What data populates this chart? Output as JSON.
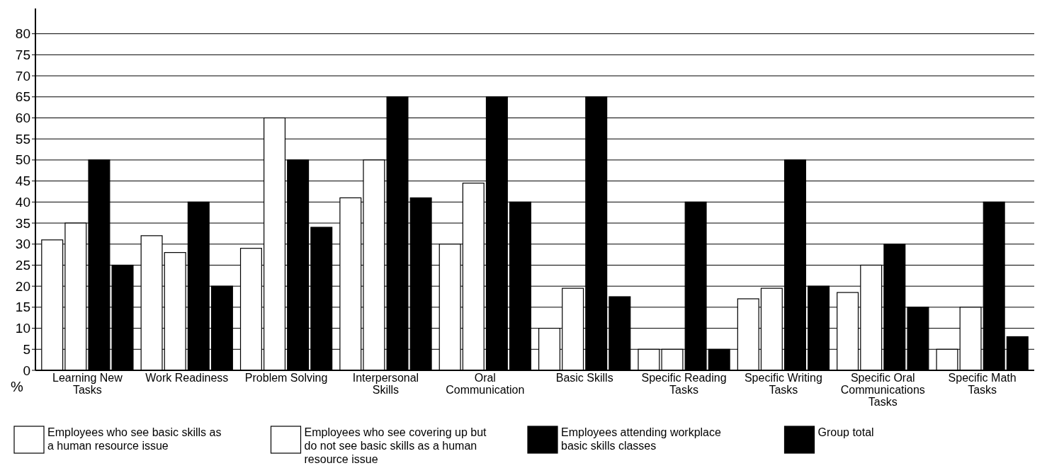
{
  "chart_data": {
    "type": "bar",
    "ylabel": "%",
    "categories": [
      "Learning New Tasks",
      "Work Readiness",
      "Problem Solving",
      "Interpersonal Skills",
      "Oral Communication",
      "Basic Skills",
      "Specific Reading Tasks",
      "Specific Writing Tasks",
      "Specific Oral Communications Tasks",
      "Specific Math Tasks"
    ],
    "series": [
      {
        "name": "Employees who see basic skills as a human resource issue",
        "color": "#ffffff",
        "values": [
          31,
          32,
          29,
          41,
          30,
          10,
          5,
          17,
          18.5,
          5
        ]
      },
      {
        "name": "Employees who see covering up but do not see basic skills as a human resource issue",
        "color": "#ffffff",
        "values": [
          35,
          28,
          60,
          50,
          44.5,
          19.5,
          5,
          19.5,
          25,
          15
        ]
      },
      {
        "name": "Employees attending workplace basic skills classes",
        "color": "#000000",
        "values": [
          50,
          40,
          50,
          65,
          65,
          65,
          40,
          50,
          30,
          40
        ]
      },
      {
        "name": "Group total",
        "color": "#000000",
        "values": [
          25,
          20,
          34,
          41,
          40,
          17.5,
          5,
          20,
          15,
          8
        ]
      }
    ],
    "ylim": [
      0,
      86
    ],
    "yticks": [
      0,
      5,
      10,
      15,
      20,
      25,
      30,
      35,
      40,
      45,
      50,
      55,
      60,
      65,
      70,
      75,
      80
    ],
    "grid": "y",
    "legend": "bottom"
  }
}
